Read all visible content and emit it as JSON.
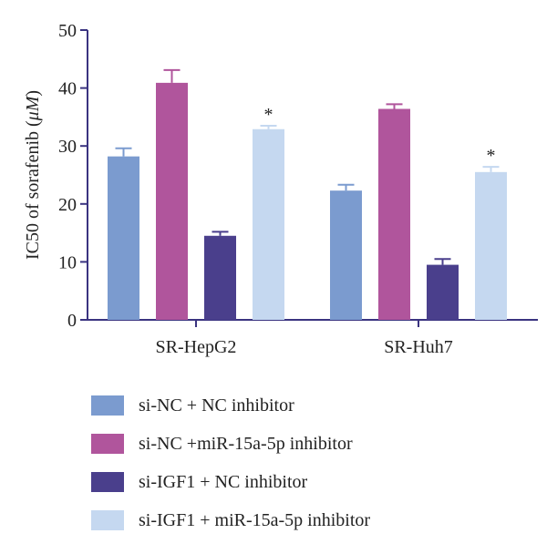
{
  "chart_data": {
    "type": "bar",
    "ylabel_pre": "IC50 of sorafenib (",
    "ylabel_unit": "μM",
    "ylabel_post": ")",
    "ylim": [
      0,
      50
    ],
    "yticks": [
      "0",
      "10",
      "20",
      "30",
      "40",
      "50"
    ],
    "categories": [
      "SR-HepG2",
      "SR-Huh7"
    ],
    "series": [
      {
        "name": "si-NC + NC inhibitor",
        "color": "#7b9bcf",
        "values": [
          28.2,
          22.3
        ],
        "errors": [
          1.4,
          1.0
        ],
        "annot": [
          "",
          ""
        ]
      },
      {
        "name": "si-NC +miR-15a-5p inhibitor",
        "color": "#b0559c",
        "values": [
          40.9,
          36.4
        ],
        "errors": [
          2.2,
          0.8
        ],
        "annot": [
          "",
          ""
        ]
      },
      {
        "name": "si-IGF1 + NC inhibitor",
        "color": "#4a3f8c",
        "values": [
          14.5,
          9.5
        ],
        "errors": [
          0.7,
          1.0
        ],
        "annot": [
          "",
          ""
        ]
      },
      {
        "name": "si-IGF1 + miR-15a-5p inhibitor",
        "color": "#c5d8f0",
        "values": [
          32.9,
          25.5
        ],
        "errors": [
          0.6,
          0.9
        ],
        "annot": [
          "*",
          "*"
        ]
      }
    ],
    "legend_position": "bottom",
    "grid": false
  }
}
